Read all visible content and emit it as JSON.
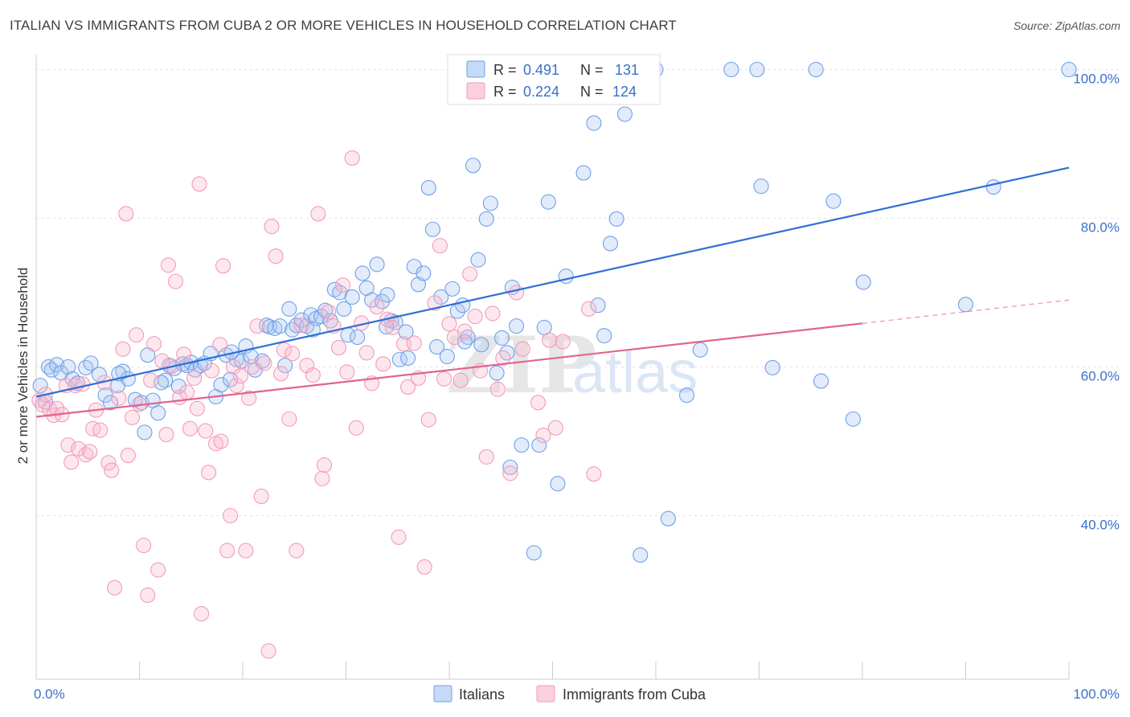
{
  "header": {
    "title": "ITALIAN VS IMMIGRANTS FROM CUBA 2 OR MORE VEHICLES IN HOUSEHOLD CORRELATION CHART",
    "source": "Source: ZipAtlas.com"
  },
  "watermark": {
    "part1": "ZIP",
    "part2": "atlas"
  },
  "legend_top": [
    {
      "r_label": "R =",
      "r_value": "0.491",
      "n_label": "N =",
      "n_value": "131",
      "color": "#6fa0e8"
    },
    {
      "r_label": "R =",
      "r_value": "0.224",
      "n_label": "N =",
      "n_value": "124",
      "color": "#f29bb8"
    }
  ],
  "legend_bottom": [
    {
      "label": "Italians",
      "color": "#6fa0e8"
    },
    {
      "label": "Immigrants from Cuba",
      "color": "#f29bb8"
    }
  ],
  "chart_data": {
    "type": "scatter",
    "title": "ITALIAN VS IMMIGRANTS FROM CUBA 2 OR MORE VEHICLES IN HOUSEHOLD CORRELATION CHART",
    "xlabel": "",
    "ylabel": "2 or more Vehicles in Household",
    "xlim": [
      0,
      100
    ],
    "ylim": [
      18,
      102
    ],
    "x_tick_labels": [
      "0.0%",
      "100.0%"
    ],
    "y_ticks": [
      40,
      60,
      80,
      100
    ],
    "y_tick_labels": [
      "40.0%",
      "60.0%",
      "80.0%",
      "100.0%"
    ],
    "grid": true,
    "legend_position": "top-center",
    "series": [
      {
        "name": "Italians",
        "color": "#6fa0e8",
        "trend": {
          "x": [
            0,
            100
          ],
          "y": [
            56.0,
            86.8
          ],
          "dashed_from": null
        },
        "points": [
          [
            0.4,
            57.5
          ],
          [
            0.9,
            55.3
          ],
          [
            1.2,
            60.0
          ],
          [
            1.5,
            59.6
          ],
          [
            2.0,
            60.3
          ],
          [
            2.4,
            59.2
          ],
          [
            3.1,
            60.0
          ],
          [
            3.5,
            58.4
          ],
          [
            4.0,
            57.8
          ],
          [
            4.8,
            59.9
          ],
          [
            5.3,
            60.5
          ],
          [
            6.1,
            59.0
          ],
          [
            6.7,
            56.2
          ],
          [
            7.2,
            55.2
          ],
          [
            7.9,
            57.5
          ],
          [
            8.4,
            59.4
          ],
          [
            8.9,
            58.4
          ],
          [
            9.6,
            55.6
          ],
          [
            10.2,
            55.2
          ],
          [
            10.5,
            51.2
          ],
          [
            11.3,
            55.5
          ],
          [
            11.8,
            53.8
          ],
          [
            12.5,
            58.2
          ],
          [
            12.9,
            60.2
          ],
          [
            13.4,
            59.8
          ],
          [
            13.8,
            57.4
          ],
          [
            14.2,
            60.4
          ],
          [
            14.6,
            60.2
          ],
          [
            15.0,
            60.6
          ],
          [
            15.4,
            59.6
          ],
          [
            15.9,
            60.2
          ],
          [
            16.3,
            60.5
          ],
          [
            16.9,
            61.8
          ],
          [
            17.4,
            56.0
          ],
          [
            17.9,
            57.6
          ],
          [
            18.4,
            61.6
          ],
          [
            18.8,
            58.3
          ],
          [
            19.4,
            61.0
          ],
          [
            19.9,
            60.8
          ],
          [
            20.3,
            62.8
          ],
          [
            20.8,
            61.4
          ],
          [
            21.2,
            59.6
          ],
          [
            21.9,
            60.8
          ],
          [
            22.3,
            65.6
          ],
          [
            22.6,
            65.4
          ],
          [
            23.1,
            65.2
          ],
          [
            23.6,
            65.5
          ],
          [
            24.1,
            60.2
          ],
          [
            24.5,
            67.8
          ],
          [
            24.8,
            65.0
          ],
          [
            25.2,
            65.6
          ],
          [
            25.7,
            66.3
          ],
          [
            26.2,
            65.5
          ],
          [
            26.6,
            67.0
          ],
          [
            27.1,
            66.5
          ],
          [
            27.6,
            66.8
          ],
          [
            28.0,
            67.6
          ],
          [
            28.5,
            66.2
          ],
          [
            28.9,
            70.4
          ],
          [
            29.4,
            70.0
          ],
          [
            29.8,
            67.8
          ],
          [
            30.2,
            64.3
          ],
          [
            30.6,
            69.4
          ],
          [
            31.1,
            64.0
          ],
          [
            31.6,
            72.6
          ],
          [
            32.0,
            70.6
          ],
          [
            32.5,
            69.0
          ],
          [
            33.0,
            73.8
          ],
          [
            33.5,
            68.8
          ],
          [
            34.0,
            69.7
          ],
          [
            34.4,
            66.2
          ],
          [
            34.8,
            66.0
          ],
          [
            35.2,
            61.0
          ],
          [
            35.8,
            64.7
          ],
          [
            36.6,
            73.5
          ],
          [
            37.0,
            71.1
          ],
          [
            37.5,
            72.6
          ],
          [
            38.0,
            84.1
          ],
          [
            38.4,
            78.5
          ],
          [
            38.8,
            62.7
          ],
          [
            39.2,
            69.4
          ],
          [
            39.8,
            61.4
          ],
          [
            40.3,
            70.5
          ],
          [
            40.8,
            67.5
          ],
          [
            41.3,
            68.3
          ],
          [
            41.8,
            64.0
          ],
          [
            42.3,
            87.1
          ],
          [
            42.8,
            74.4
          ],
          [
            43.1,
            63.0
          ],
          [
            43.6,
            79.9
          ],
          [
            44.0,
            82.0
          ],
          [
            44.6,
            59.2
          ],
          [
            45.1,
            63.9
          ],
          [
            45.6,
            61.9
          ],
          [
            46.1,
            70.7
          ],
          [
            46.5,
            65.5
          ],
          [
            47.0,
            49.5
          ],
          [
            48.2,
            35.0
          ],
          [
            48.7,
            49.5
          ],
          [
            49.2,
            65.3
          ],
          [
            49.6,
            82.2
          ],
          [
            50.1,
            100.0
          ],
          [
            50.5,
            44.3
          ],
          [
            51.3,
            72.2
          ],
          [
            52.0,
            100.0
          ],
          [
            53.0,
            86.1
          ],
          [
            53.5,
            100.0
          ],
          [
            54.0,
            92.8
          ],
          [
            54.4,
            68.3
          ],
          [
            55.0,
            64.2
          ],
          [
            55.6,
            76.6
          ],
          [
            56.2,
            79.9
          ],
          [
            56.7,
            100.0
          ],
          [
            57.0,
            94.0
          ],
          [
            58.5,
            34.7
          ],
          [
            59.0,
            100.0
          ],
          [
            60.0,
            100.0
          ],
          [
            61.2,
            39.6
          ],
          [
            63.0,
            56.2
          ],
          [
            64.3,
            62.3
          ],
          [
            67.3,
            100.0
          ],
          [
            69.8,
            100.0
          ],
          [
            70.2,
            84.3
          ],
          [
            71.3,
            59.9
          ],
          [
            75.5,
            100.0
          ],
          [
            76.0,
            58.1
          ],
          [
            77.2,
            82.3
          ],
          [
            79.1,
            53.0
          ],
          [
            80.1,
            71.4
          ],
          [
            90.0,
            68.4
          ],
          [
            92.7,
            84.2
          ],
          [
            100.0,
            100.0
          ],
          [
            45.9,
            46.5
          ],
          [
            41.5,
            63.4
          ],
          [
            36.0,
            61.2
          ],
          [
            33.9,
            65.4
          ],
          [
            26.8,
            65.0
          ],
          [
            10.8,
            61.6
          ],
          [
            18.9,
            62.0
          ],
          [
            12.1,
            57.9
          ],
          [
            8.0,
            59.1
          ]
        ]
      },
      {
        "name": "Immigrants from Cuba",
        "color": "#f29bb8",
        "trend": {
          "x": [
            0,
            100
          ],
          "y": [
            53.3,
            69.0
          ],
          "dashed_from": 80
        },
        "points": [
          [
            0.3,
            55.5
          ],
          [
            0.6,
            54.9
          ],
          [
            0.9,
            56.3
          ],
          [
            1.3,
            54.3
          ],
          [
            1.7,
            53.5
          ],
          [
            2.0,
            54.4
          ],
          [
            2.5,
            53.6
          ],
          [
            2.9,
            57.5
          ],
          [
            3.1,
            49.5
          ],
          [
            3.4,
            47.2
          ],
          [
            3.8,
            57.5
          ],
          [
            4.1,
            49.0
          ],
          [
            4.5,
            57.7
          ],
          [
            4.8,
            48.2
          ],
          [
            5.2,
            48.6
          ],
          [
            5.5,
            51.7
          ],
          [
            5.8,
            54.2
          ],
          [
            6.2,
            51.5
          ],
          [
            6.6,
            57.9
          ],
          [
            7.0,
            47.1
          ],
          [
            7.3,
            46.1
          ],
          [
            7.6,
            30.3
          ],
          [
            8.0,
            55.8
          ],
          [
            8.4,
            62.4
          ],
          [
            8.7,
            80.6
          ],
          [
            8.9,
            48.1
          ],
          [
            9.3,
            53.2
          ],
          [
            9.7,
            64.3
          ],
          [
            10.0,
            55.0
          ],
          [
            10.4,
            36.0
          ],
          [
            10.8,
            29.3
          ],
          [
            11.1,
            58.2
          ],
          [
            11.4,
            63.1
          ],
          [
            11.8,
            32.7
          ],
          [
            12.2,
            60.8
          ],
          [
            12.6,
            50.9
          ],
          [
            12.8,
            73.7
          ],
          [
            13.1,
            60.1
          ],
          [
            13.5,
            71.5
          ],
          [
            13.9,
            55.9
          ],
          [
            14.3,
            61.7
          ],
          [
            14.6,
            56.6
          ],
          [
            14.9,
            51.7
          ],
          [
            15.3,
            58.5
          ],
          [
            15.6,
            54.4
          ],
          [
            15.8,
            84.6
          ],
          [
            16.0,
            26.8
          ],
          [
            16.4,
            51.4
          ],
          [
            16.7,
            45.8
          ],
          [
            17.0,
            59.5
          ],
          [
            17.4,
            49.7
          ],
          [
            17.8,
            63.0
          ],
          [
            17.9,
            50.0
          ],
          [
            18.1,
            73.6
          ],
          [
            18.5,
            35.3
          ],
          [
            18.8,
            40.0
          ],
          [
            19.1,
            60.0
          ],
          [
            19.4,
            57.5
          ],
          [
            19.8,
            58.8
          ],
          [
            20.3,
            35.3
          ],
          [
            20.6,
            55.8
          ],
          [
            20.9,
            60.0
          ],
          [
            21.4,
            65.5
          ],
          [
            21.8,
            42.6
          ],
          [
            22.1,
            60.5
          ],
          [
            22.5,
            21.8
          ],
          [
            22.8,
            78.9
          ],
          [
            23.2,
            74.9
          ],
          [
            23.7,
            59.1
          ],
          [
            24.0,
            62.3
          ],
          [
            24.5,
            53.0
          ],
          [
            24.8,
            61.8
          ],
          [
            25.2,
            35.3
          ],
          [
            25.7,
            65.6
          ],
          [
            26.2,
            60.2
          ],
          [
            26.8,
            58.9
          ],
          [
            27.3,
            80.6
          ],
          [
            27.7,
            45.0
          ],
          [
            27.9,
            46.8
          ],
          [
            28.3,
            67.4
          ],
          [
            28.8,
            65.5
          ],
          [
            29.3,
            62.6
          ],
          [
            29.7,
            71.0
          ],
          [
            30.1,
            59.3
          ],
          [
            30.6,
            88.1
          ],
          [
            31.0,
            51.8
          ],
          [
            31.5,
            65.9
          ],
          [
            32.0,
            61.9
          ],
          [
            32.5,
            57.8
          ],
          [
            33.0,
            68.1
          ],
          [
            33.6,
            60.4
          ],
          [
            34.0,
            66.4
          ],
          [
            34.5,
            65.3
          ],
          [
            35.1,
            37.1
          ],
          [
            35.6,
            63.1
          ],
          [
            36.0,
            57.3
          ],
          [
            36.6,
            63.2
          ],
          [
            37.0,
            58.5
          ],
          [
            37.6,
            33.1
          ],
          [
            38.0,
            52.9
          ],
          [
            38.6,
            68.6
          ],
          [
            39.1,
            76.3
          ],
          [
            39.5,
            58.4
          ],
          [
            40.0,
            65.8
          ],
          [
            40.5,
            64.0
          ],
          [
            41.1,
            58.2
          ],
          [
            41.5,
            64.8
          ],
          [
            42.0,
            72.5
          ],
          [
            42.5,
            66.8
          ],
          [
            43.0,
            59.5
          ],
          [
            43.6,
            47.9
          ],
          [
            44.2,
            67.2
          ],
          [
            44.7,
            57.0
          ],
          [
            45.2,
            61.2
          ],
          [
            45.9,
            45.7
          ],
          [
            46.5,
            70.0
          ],
          [
            47.1,
            62.4
          ],
          [
            48.6,
            55.2
          ],
          [
            49.1,
            50.8
          ],
          [
            49.7,
            63.6
          ],
          [
            50.3,
            51.8
          ],
          [
            51.0,
            63.4
          ],
          [
            53.5,
            67.8
          ],
          [
            54.0,
            45.6
          ]
        ]
      }
    ]
  },
  "axis": {
    "y_title": "2 or more Vehicles in Household",
    "x_left_label": "0.0%",
    "x_right_label": "100.0%"
  }
}
